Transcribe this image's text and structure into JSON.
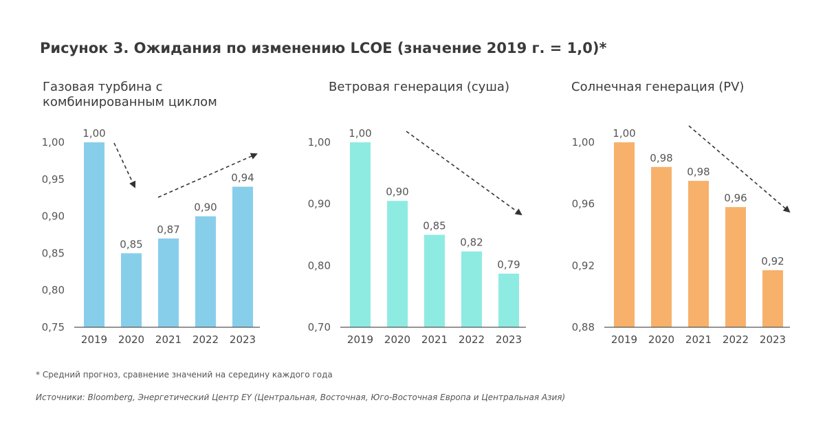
{
  "figure_title": "Рисунок 3. Ожидания по изменению LCOE (значение 2019 г. = 1,0)*",
  "footnote": "* Средний прогноз, сравнение значений на середину каждого года",
  "sources": "Источники: Bloomberg, Энергетический Центр EY (Центральная, Восточная, Юго-Восточная Европа и Центральная Азия)",
  "colors": {
    "gas": "#87ceeb",
    "wind": "#8eebe2",
    "solar": "#f7b16b",
    "axis": "#555555",
    "arrow": "#333333"
  },
  "chart_data": [
    {
      "type": "bar",
      "title_lines": [
        "Газовая турбина с",
        "комбинированным циклом"
      ],
      "categories": [
        "2019",
        "2020",
        "2021",
        "2022",
        "2023"
      ],
      "values": [
        1.0,
        0.85,
        0.87,
        0.9,
        0.94
      ],
      "value_labels": [
        "1,00",
        "0,85",
        "0,87",
        "0,90",
        "0,94"
      ],
      "ylim": [
        0.75,
        1.0
      ],
      "yticks": [
        1.0,
        0.95,
        0.9,
        0.85,
        0.8,
        0.75
      ],
      "ytick_labels": [
        "1,00",
        "0,95",
        "0,90",
        "0,85",
        "0,80",
        "0,75"
      ],
      "color": "#87ceeb",
      "annotations": [
        "trend-arrow-down",
        "trend-arrow-up"
      ]
    },
    {
      "type": "bar",
      "title_lines": [
        "Ветровая генерация (суша)"
      ],
      "categories": [
        "2019",
        "2020",
        "2021",
        "2022",
        "2023"
      ],
      "values": [
        1.0,
        0.905,
        0.85,
        0.823,
        0.787
      ],
      "value_labels": [
        "1,00",
        "0,90",
        "0,85",
        "0,82",
        "0,79"
      ],
      "ylim": [
        0.7,
        1.0
      ],
      "yticks": [
        1.0,
        0.9,
        0.8,
        0.7
      ],
      "ytick_labels": [
        "1,00",
        "0,90",
        "0,80",
        "0,70"
      ],
      "color": "#8eebe2",
      "annotations": [
        "trend-arrow-down"
      ]
    },
    {
      "type": "bar",
      "title_lines": [
        "Солнечная генерация (PV)"
      ],
      "categories": [
        "2019",
        "2020",
        "2021",
        "2022",
        "2023"
      ],
      "values": [
        1.0,
        0.984,
        0.975,
        0.958,
        0.917
      ],
      "value_labels": [
        "1,00",
        "0,98",
        "0,98",
        "0,96",
        "0,92"
      ],
      "ylim": [
        0.88,
        1.0
      ],
      "yticks": [
        1.0,
        0.96,
        0.92,
        0.88
      ],
      "ytick_labels": [
        "1,00",
        "0,96",
        "0,92",
        "0,88"
      ],
      "color": "#f7b16b",
      "annotations": [
        "trend-arrow-down"
      ]
    }
  ]
}
